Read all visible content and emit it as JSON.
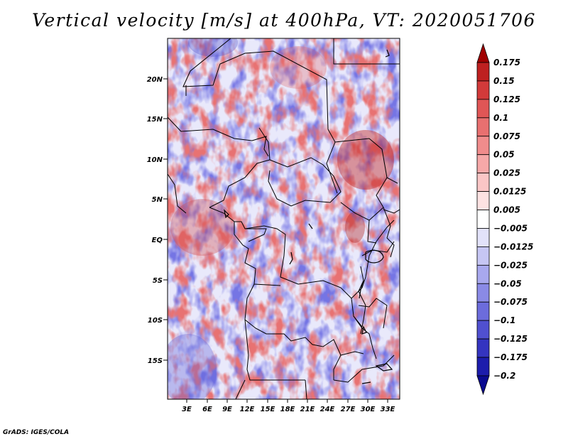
{
  "title": "Vertical velocity [m/s] at 400hPa, VT: 2020051706",
  "credit": "GrADS: IGES/COLA",
  "lat_labels": [
    "20N",
    "15N",
    "10N",
    "5N",
    "EQ",
    "5S",
    "10S",
    "15S"
  ],
  "lon_labels": [
    "3E",
    "6E",
    "9E",
    "12E",
    "15E",
    "18E",
    "21E",
    "24E",
    "27E",
    "30E",
    "33E"
  ],
  "legend": {
    "levels": [
      "0.175",
      "0.15",
      "0.125",
      "0.1",
      "0.075",
      "0.05",
      "0.025",
      "0.0125",
      "0.005",
      "-0.005",
      "-0.0125",
      "-0.025",
      "-0.05",
      "-0.075",
      "-0.1",
      "-0.125",
      "-0.175",
      "-0.2"
    ],
    "colors": [
      "#a00000",
      "#be2020",
      "#d23a3a",
      "#e05656",
      "#e87070",
      "#f08c8c",
      "#f6a8a8",
      "#fac6c6",
      "#fde2e2",
      "#ffffff",
      "#e2e2fa",
      "#c6c6f4",
      "#a8a8ee",
      "#8a8ae6",
      "#6c6cdc",
      "#5050d0",
      "#3434c0",
      "#1c1cac",
      "#0a0a90"
    ]
  },
  "colors": {
    "positive": "#e46464",
    "negative": "#6e6ee2",
    "neutral": "#f2f2ff",
    "border": "#000000"
  }
}
